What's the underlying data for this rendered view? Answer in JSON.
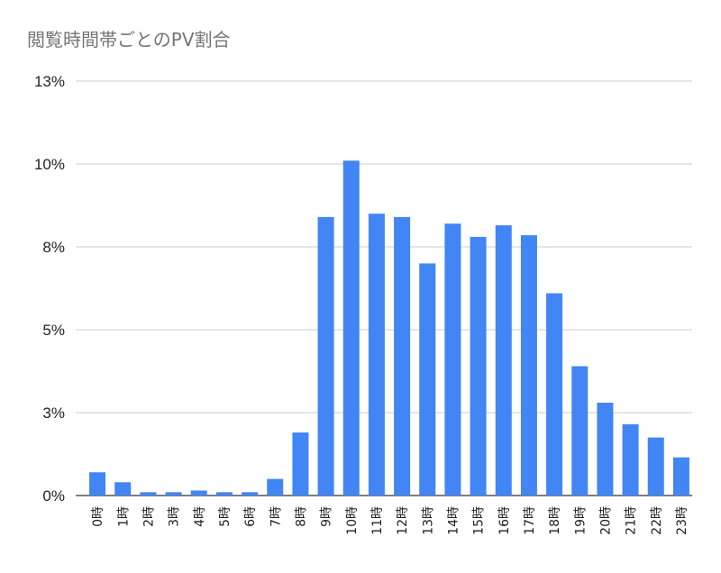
{
  "chart_data": {
    "type": "bar",
    "title": "閲覧時間帯ごとのPV割合",
    "xlabel": "",
    "ylabel": "",
    "categories": [
      "0時",
      "1時",
      "2時",
      "3時",
      "4時",
      "5時",
      "6時",
      "7時",
      "8時",
      "9時",
      "10時",
      "11時",
      "12時",
      "13時",
      "14時",
      "15時",
      "16時",
      "17時",
      "18時",
      "19時",
      "20時",
      "21時",
      "22時",
      "23時"
    ],
    "values": [
      0.7,
      0.4,
      0.1,
      0.1,
      0.15,
      0.1,
      0.1,
      0.5,
      1.9,
      8.4,
      10.1,
      8.5,
      8.4,
      7.0,
      8.2,
      7.8,
      8.15,
      7.85,
      6.1,
      3.9,
      2.8,
      2.15,
      1.75,
      1.15
    ],
    "ylim": [
      0,
      12.5
    ],
    "y_ticks": [
      0,
      2.5,
      5,
      7.5,
      10,
      12.5
    ],
    "y_tick_labels": [
      "0%",
      "3%",
      "5%",
      "8%",
      "10%",
      "13%"
    ],
    "grid": true,
    "bar_color": "#4285F4",
    "legend": false
  }
}
